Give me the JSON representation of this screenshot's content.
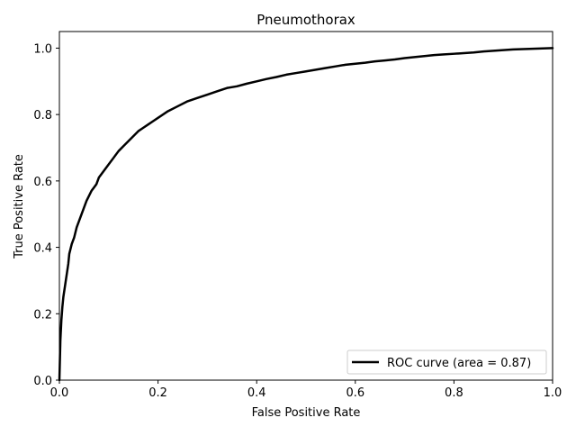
{
  "chart_data": {
    "type": "line",
    "title": "Pneumothorax",
    "xlabel": "False Positive Rate",
    "ylabel": "True Positive Rate",
    "xlim": [
      0.0,
      1.0
    ],
    "ylim": [
      0.0,
      1.05
    ],
    "grid": false,
    "legend_position": "lower right",
    "x_ticks": [
      "0.0",
      "0.2",
      "0.4",
      "0.6",
      "0.8",
      "1.0"
    ],
    "y_ticks": [
      "0.0",
      "0.2",
      "0.4",
      "0.6",
      "0.8",
      "1.0"
    ],
    "series": [
      {
        "name": "ROC curve (area = 0.87)",
        "color": "#000000",
        "x": [
          0.0,
          0.002,
          0.004,
          0.006,
          0.008,
          0.01,
          0.012,
          0.015,
          0.018,
          0.02,
          0.025,
          0.03,
          0.035,
          0.04,
          0.045,
          0.05,
          0.055,
          0.06,
          0.065,
          0.07,
          0.075,
          0.08,
          0.09,
          0.1,
          0.11,
          0.12,
          0.13,
          0.14,
          0.15,
          0.16,
          0.17,
          0.18,
          0.19,
          0.2,
          0.22,
          0.24,
          0.26,
          0.28,
          0.3,
          0.32,
          0.34,
          0.36,
          0.38,
          0.4,
          0.42,
          0.44,
          0.46,
          0.48,
          0.5,
          0.52,
          0.54,
          0.56,
          0.58,
          0.6,
          0.62,
          0.64,
          0.66,
          0.68,
          0.7,
          0.72,
          0.74,
          0.76,
          0.78,
          0.8,
          0.82,
          0.84,
          0.86,
          0.88,
          0.9,
          0.92,
          0.94,
          0.96,
          0.98,
          1.0
        ],
        "y": [
          0.0,
          0.12,
          0.18,
          0.22,
          0.25,
          0.27,
          0.29,
          0.32,
          0.35,
          0.38,
          0.41,
          0.43,
          0.46,
          0.48,
          0.5,
          0.52,
          0.54,
          0.555,
          0.57,
          0.58,
          0.59,
          0.61,
          0.63,
          0.65,
          0.67,
          0.69,
          0.705,
          0.72,
          0.735,
          0.75,
          0.76,
          0.77,
          0.78,
          0.79,
          0.81,
          0.825,
          0.84,
          0.85,
          0.86,
          0.87,
          0.88,
          0.885,
          0.893,
          0.9,
          0.907,
          0.913,
          0.92,
          0.925,
          0.93,
          0.935,
          0.94,
          0.945,
          0.95,
          0.953,
          0.956,
          0.96,
          0.963,
          0.966,
          0.97,
          0.973,
          0.976,
          0.979,
          0.981,
          0.983,
          0.985,
          0.987,
          0.99,
          0.992,
          0.994,
          0.996,
          0.997,
          0.998,
          0.999,
          1.0
        ]
      }
    ]
  }
}
